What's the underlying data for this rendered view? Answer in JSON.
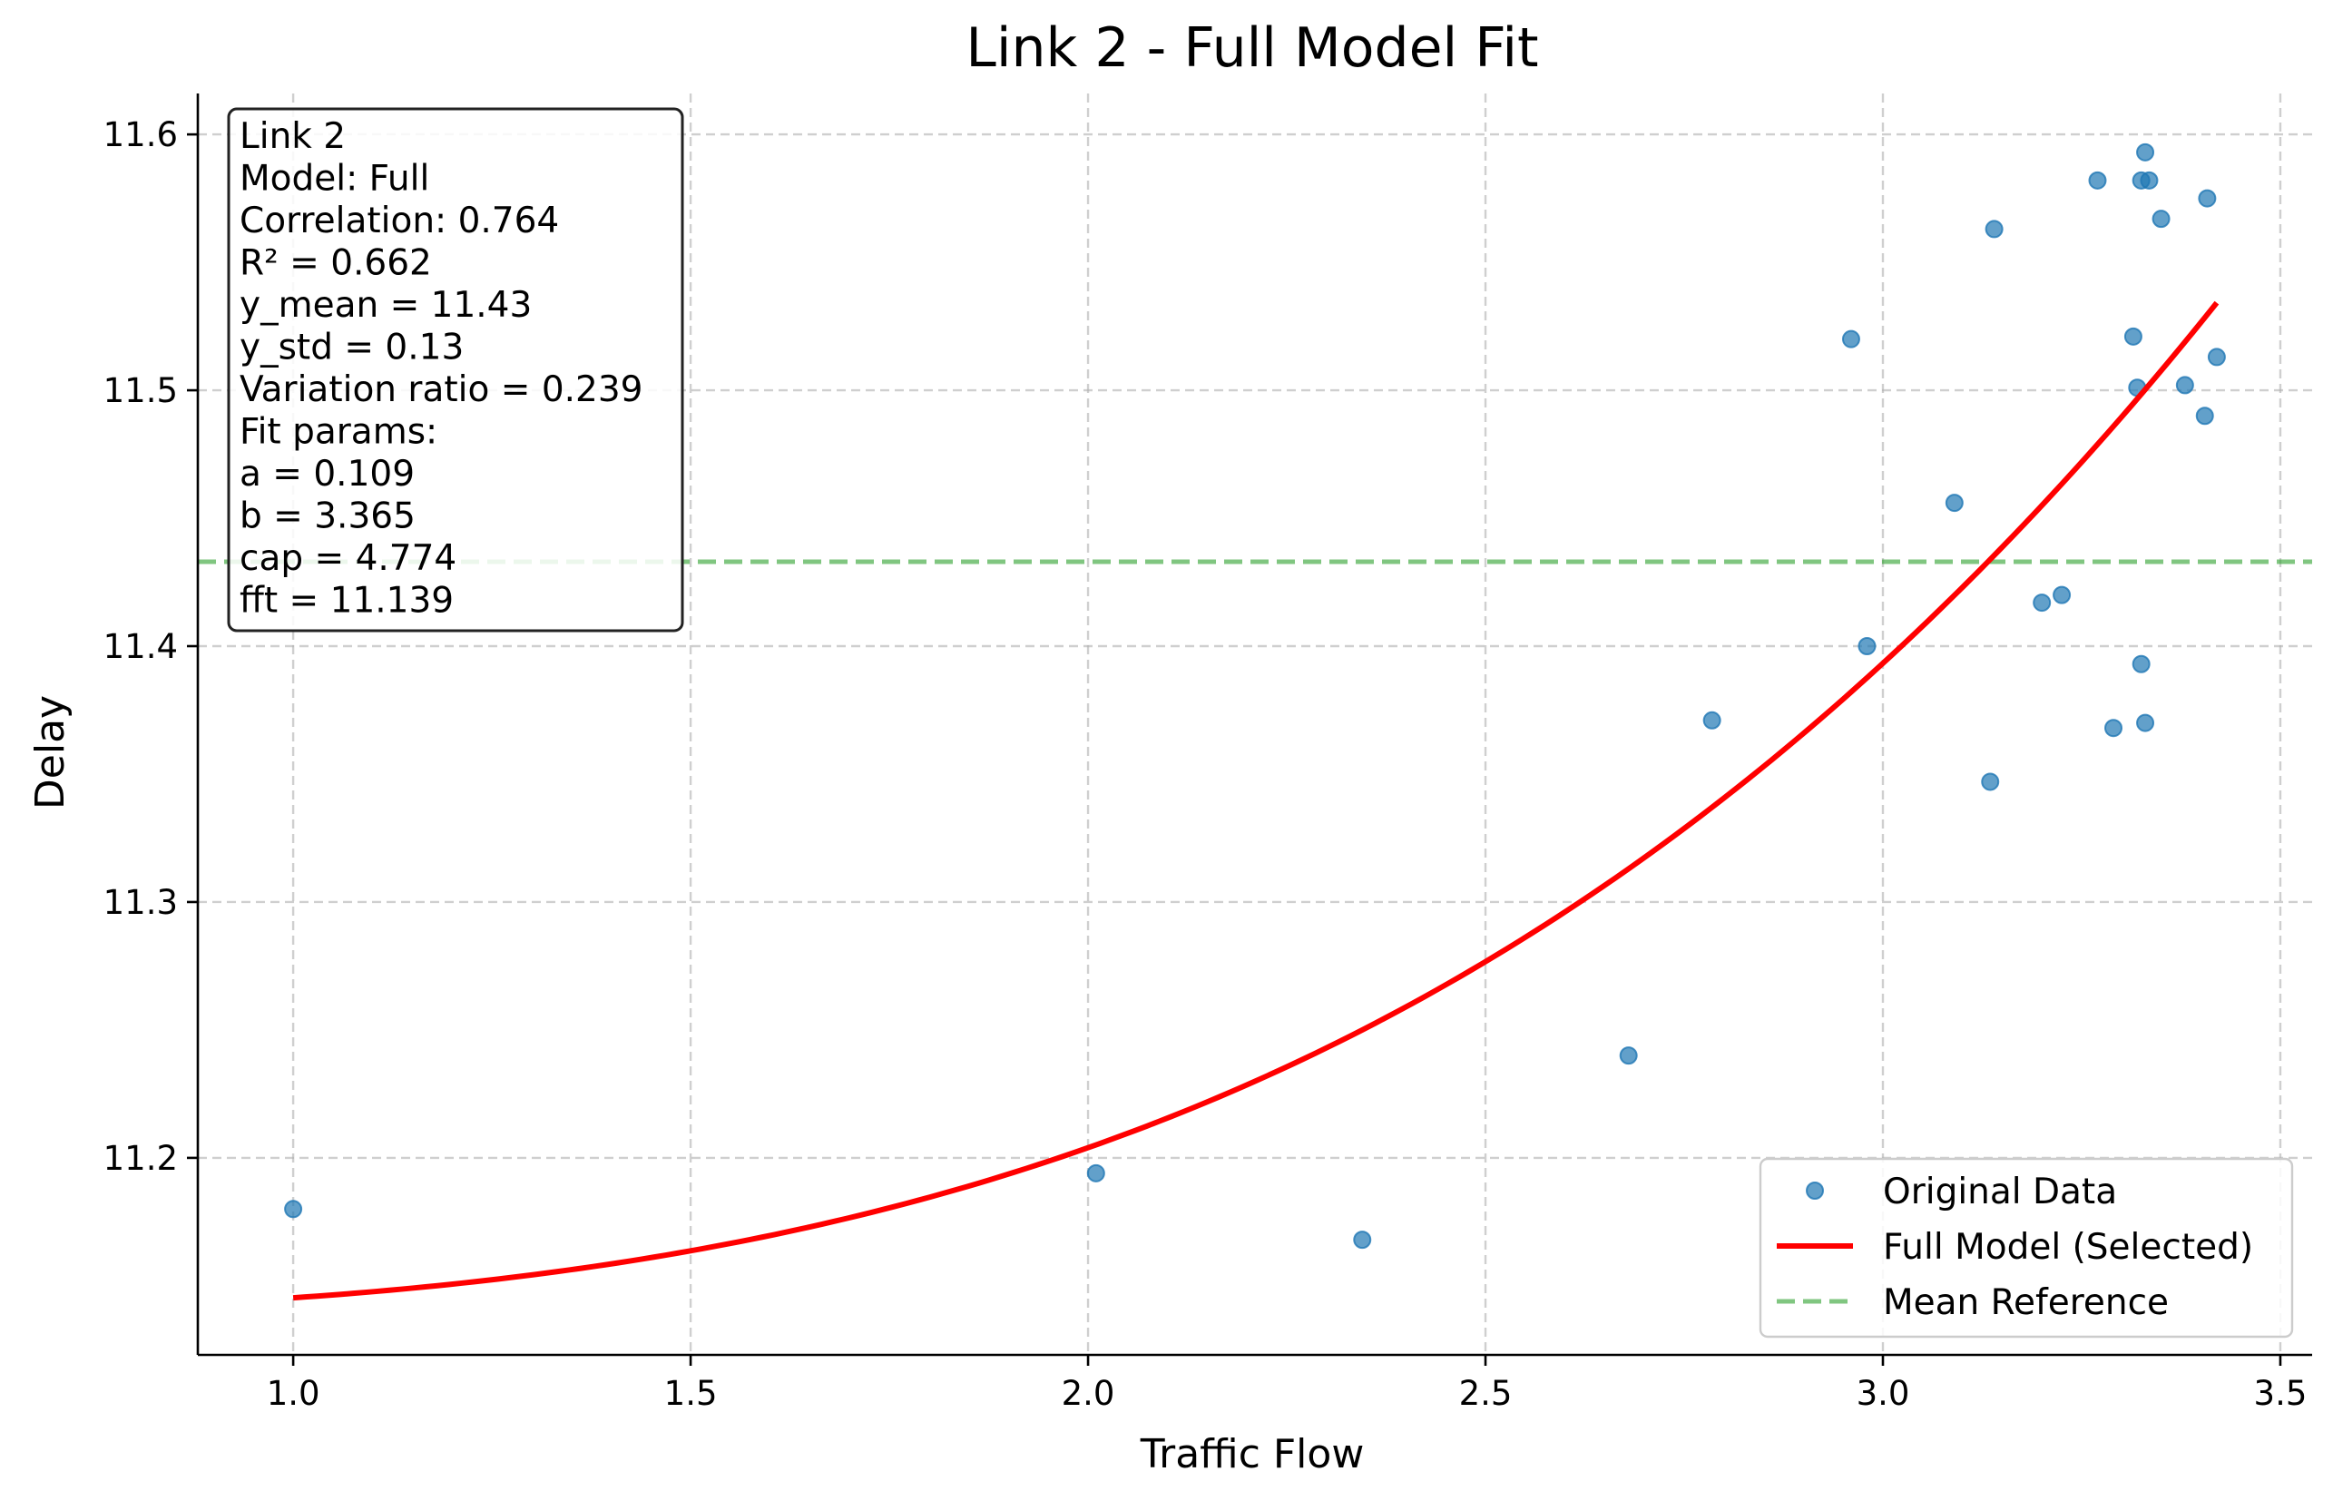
{
  "chart_data": {
    "type": "scatter",
    "title": "Link 2 - Full Model Fit",
    "xlabel": "Traffic Flow",
    "ylabel": "Delay",
    "xlim": [
      0.88,
      3.54
    ],
    "ylim": [
      11.123,
      11.616
    ],
    "xticks": [
      1.0,
      1.5,
      2.0,
      2.5,
      3.0,
      3.5
    ],
    "xtick_labels": [
      "1.0",
      "1.5",
      "2.0",
      "2.5",
      "3.0",
      "3.5"
    ],
    "yticks": [
      11.2,
      11.3,
      11.4,
      11.5,
      11.6
    ],
    "ytick_labels": [
      "11.2",
      "11.3",
      "11.4",
      "11.5",
      "11.6"
    ],
    "grid": true,
    "legend_position": "lower-right",
    "series": [
      {
        "name": "Original Data",
        "kind": "scatter",
        "color": "#1f77b4",
        "x": [
          1.0,
          2.01,
          2.345,
          2.68,
          2.785,
          2.96,
          2.98,
          3.09,
          3.135,
          3.14,
          3.2,
          3.225,
          3.27,
          3.29,
          3.315,
          3.32,
          3.325,
          3.325,
          3.33,
          3.33,
          3.335,
          3.35,
          3.38,
          3.405,
          3.408,
          3.42
        ],
        "y": [
          11.18,
          11.194,
          11.168,
          11.24,
          11.371,
          11.52,
          11.4,
          11.456,
          11.347,
          11.563,
          11.417,
          11.42,
          11.582,
          11.368,
          11.521,
          11.501,
          11.582,
          11.393,
          11.593,
          11.37,
          11.582,
          11.567,
          11.502,
          11.49,
          11.575,
          11.513
        ]
      },
      {
        "name": "Full Model (Selected)",
        "kind": "line",
        "color": "#ff0000",
        "model": {
          "a": 0.109,
          "b": 3.365,
          "cap": 4.774,
          "fft": 11.139
        },
        "x_range": [
          1.0,
          3.42
        ]
      },
      {
        "name": "Mean Reference",
        "kind": "hline",
        "color": "#2ca02c",
        "y": 11.433
      }
    ],
    "info_box": [
      "Link 2",
      "Model: Full",
      "Correlation: 0.764",
      "R² = 0.662",
      "y_mean = 11.43",
      "y_std = 0.13",
      "Variation ratio = 0.239",
      "Fit params:",
      "a = 0.109",
      "b = 3.365",
      "cap = 4.774",
      "fft = 11.139"
    ]
  }
}
